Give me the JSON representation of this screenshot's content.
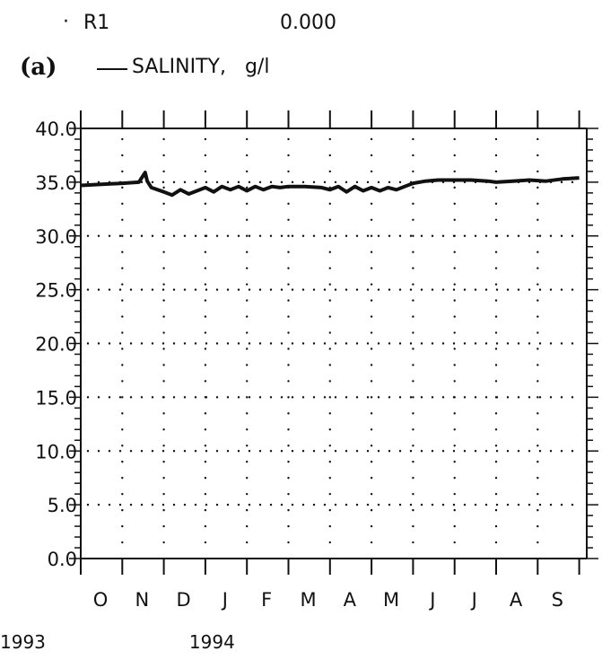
{
  "header": {
    "station_marker": "·",
    "station": "R1",
    "depth": "0.000",
    "panel": "(a)",
    "legend_label": "SALINITY,   g/l"
  },
  "chart_data": {
    "type": "line",
    "title": "",
    "xlabel": "",
    "ylabel": "",
    "ylim": [
      0,
      40
    ],
    "yticks": [
      "0.0",
      "5.0",
      "10.0",
      "15.0",
      "20.0",
      "25.0",
      "30.0",
      "35.0",
      "40.0"
    ],
    "y_minor_step": 1,
    "x_months": [
      "O",
      "N",
      "D",
      "J",
      "F",
      "M",
      "A",
      "M",
      "J",
      "J",
      "A",
      "S"
    ],
    "x_years": [
      {
        "label": "1993",
        "month_index": 0
      },
      {
        "label": "1994",
        "month_index": 3
      }
    ],
    "grid": "dotted",
    "line_color": "#111111",
    "series": [
      {
        "name": "SALINITY, g/l",
        "x": [
          0,
          0.5,
          1.0,
          1.4,
          1.55,
          1.6,
          1.7,
          2.0,
          2.2,
          2.4,
          2.6,
          2.8,
          3.0,
          3.2,
          3.4,
          3.6,
          3.8,
          4.0,
          4.2,
          4.4,
          4.6,
          4.8,
          5.0,
          5.4,
          5.8,
          6.0,
          6.2,
          6.4,
          6.6,
          6.8,
          7.0,
          7.2,
          7.4,
          7.6,
          7.8,
          8.0,
          8.3,
          8.6,
          9.0,
          9.4,
          9.8,
          10.0,
          10.4,
          10.8,
          11.2,
          11.6,
          12.0
        ],
        "y": [
          34.7,
          34.8,
          34.9,
          35.0,
          35.9,
          35.1,
          34.5,
          34.1,
          33.8,
          34.3,
          33.9,
          34.2,
          34.5,
          34.1,
          34.6,
          34.3,
          34.6,
          34.2,
          34.6,
          34.3,
          34.6,
          34.5,
          34.6,
          34.6,
          34.5,
          34.3,
          34.6,
          34.1,
          34.6,
          34.2,
          34.5,
          34.2,
          34.5,
          34.3,
          34.6,
          34.9,
          35.1,
          35.2,
          35.2,
          35.2,
          35.1,
          35.0,
          35.1,
          35.2,
          35.1,
          35.3,
          35.4
        ]
      }
    ]
  }
}
